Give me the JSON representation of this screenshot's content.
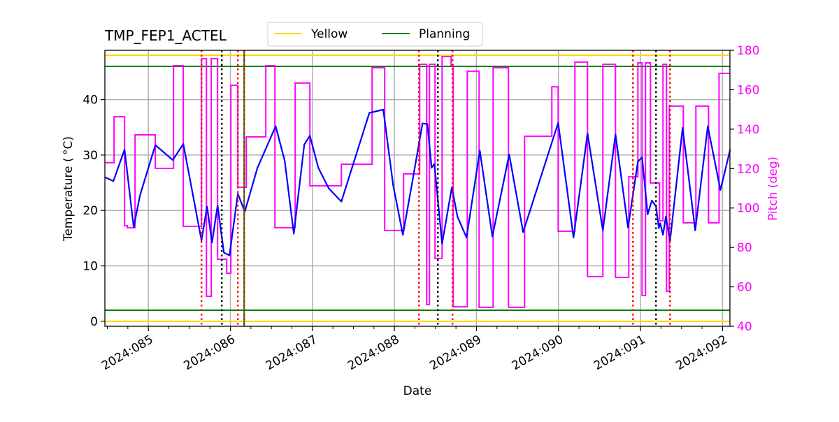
{
  "chart_data": {
    "type": "line",
    "title": "TMP_FEP1_ACTEL",
    "xlabel": "Date",
    "ylabel": "Temperature ($^\\circ$C)",
    "ylabel_display": "Temperature ( °C)",
    "y2label": "Pitch (deg)",
    "xlim": [
      84.47,
      92.09
    ],
    "ylim": [
      -0.9,
      48.9
    ],
    "y2lim": [
      40,
      180
    ],
    "grid": true,
    "legend_placement": "top-center",
    "x_ticks": [
      {
        "value": 85,
        "label": "2024:085"
      },
      {
        "value": 86,
        "label": "2024:086"
      },
      {
        "value": 87,
        "label": "2024:087"
      },
      {
        "value": 88,
        "label": "2024:088"
      },
      {
        "value": 89,
        "label": "2024:089"
      },
      {
        "value": 90,
        "label": "2024:090"
      },
      {
        "value": 91,
        "label": "2024:091"
      },
      {
        "value": 92,
        "label": "2024:092"
      }
    ],
    "y_ticks": [
      0,
      10,
      20,
      30,
      40
    ],
    "y2_ticks": [
      40,
      60,
      80,
      100,
      120,
      140,
      160,
      180
    ],
    "limit_lines": [
      {
        "name": "Yellow",
        "values": [
          48,
          0
        ],
        "color": "#ffd700"
      },
      {
        "name": "Planning",
        "values": [
          46,
          2
        ],
        "color": "#008000"
      }
    ],
    "vlines_red": [
      85.648,
      86.091,
      86.168,
      88.299,
      88.708,
      90.908,
      91.36
    ],
    "vlines_black": [
      85.895,
      88.529,
      91.189
    ],
    "vlines_green": [
      86.168
    ],
    "temperature": {
      "color": "#0000ff",
      "points": [
        [
          84.471,
          26.0
        ],
        [
          84.574,
          25.3
        ],
        [
          84.71,
          31.0
        ],
        [
          84.821,
          17.0
        ],
        [
          84.898,
          22.7
        ],
        [
          85.085,
          31.8
        ],
        [
          85.298,
          29.1
        ],
        [
          85.426,
          32.0
        ],
        [
          85.648,
          14.6
        ],
        [
          85.716,
          20.7
        ],
        [
          85.776,
          14.2
        ],
        [
          85.844,
          20.9
        ],
        [
          85.921,
          12.4
        ],
        [
          85.989,
          11.9
        ],
        [
          86.091,
          23.0
        ],
        [
          86.176,
          19.8
        ],
        [
          86.33,
          27.7
        ],
        [
          86.552,
          35.2
        ],
        [
          86.662,
          29.0
        ],
        [
          86.773,
          15.8
        ],
        [
          86.901,
          31.9
        ],
        [
          86.969,
          33.5
        ],
        [
          87.072,
          27.7
        ],
        [
          87.199,
          24.0
        ],
        [
          87.353,
          21.6
        ],
        [
          87.694,
          37.6
        ],
        [
          87.864,
          38.2
        ],
        [
          87.984,
          24.6
        ],
        [
          88.103,
          15.6
        ],
        [
          88.222,
          25.5
        ],
        [
          88.342,
          35.7
        ],
        [
          88.402,
          35.6
        ],
        [
          88.453,
          27.7
        ],
        [
          88.487,
          28.4
        ],
        [
          88.581,
          14.0
        ],
        [
          88.7,
          24.2
        ],
        [
          88.768,
          18.9
        ],
        [
          88.879,
          15.1
        ],
        [
          89.041,
          30.8
        ],
        [
          89.194,
          15.3
        ],
        [
          89.399,
          30.1
        ],
        [
          89.569,
          16.1
        ],
        [
          89.996,
          35.8
        ],
        [
          90.183,
          15.1
        ],
        [
          90.354,
          33.9
        ],
        [
          90.541,
          16.4
        ],
        [
          90.695,
          33.7
        ],
        [
          90.848,
          16.9
        ],
        [
          90.968,
          28.8
        ],
        [
          91.019,
          29.6
        ],
        [
          91.087,
          19.3
        ],
        [
          91.138,
          21.8
        ],
        [
          91.189,
          20.7
        ],
        [
          91.223,
          16.8
        ],
        [
          91.24,
          17.7
        ],
        [
          91.274,
          15.6
        ],
        [
          91.309,
          18.9
        ],
        [
          91.36,
          14.5
        ],
        [
          91.513,
          34.9
        ],
        [
          91.667,
          16.4
        ],
        [
          91.82,
          35.2
        ],
        [
          91.974,
          23.7
        ],
        [
          92.093,
          31.0
        ]
      ]
    },
    "pitch": {
      "color": "#ff00ff",
      "steps": [
        [
          84.471,
          123
        ],
        [
          84.582,
          146.3
        ],
        [
          84.71,
          91
        ],
        [
          84.744,
          90
        ],
        [
          84.838,
          137.1
        ],
        [
          85.085,
          120.1
        ],
        [
          85.307,
          172.2
        ],
        [
          85.426,
          90.7
        ],
        [
          85.648,
          175.8
        ],
        [
          85.708,
          55.2
        ],
        [
          85.767,
          175.8
        ],
        [
          85.844,
          74
        ],
        [
          85.955,
          66.9
        ],
        [
          86.006,
          162.3
        ],
        [
          86.091,
          110.5
        ],
        [
          86.194,
          136.1
        ],
        [
          86.432,
          172.2
        ],
        [
          86.543,
          90
        ],
        [
          86.79,
          163.4
        ],
        [
          86.969,
          111.3
        ],
        [
          87.353,
          122.2
        ],
        [
          87.728,
          171.2
        ],
        [
          87.881,
          88.6
        ],
        [
          88.112,
          117.3
        ],
        [
          88.308,
          172.9
        ],
        [
          88.393,
          51
        ],
        [
          88.427,
          172.9
        ],
        [
          88.495,
          74.4
        ],
        [
          88.581,
          176.8
        ],
        [
          88.691,
          172.5
        ],
        [
          88.717,
          49.9
        ],
        [
          88.888,
          169.4
        ],
        [
          89.032,
          49.6
        ],
        [
          89.203,
          171.2
        ],
        [
          89.39,
          49.6
        ],
        [
          89.587,
          136.4
        ],
        [
          89.919,
          161.5
        ],
        [
          89.996,
          88.2
        ],
        [
          90.2,
          174
        ],
        [
          90.354,
          65.2
        ],
        [
          90.541,
          172.9
        ],
        [
          90.695,
          64.8
        ],
        [
          90.857,
          115.9
        ],
        [
          90.968,
          173.6
        ],
        [
          91.019,
          55.6
        ],
        [
          91.061,
          173.6
        ],
        [
          91.121,
          112.7
        ],
        [
          91.232,
          93.5
        ],
        [
          91.274,
          172.9
        ],
        [
          91.317,
          57.7
        ],
        [
          91.351,
          151.7
        ],
        [
          91.522,
          92.5
        ],
        [
          91.675,
          151.7
        ],
        [
          91.829,
          92.5
        ],
        [
          91.957,
          168.3
        ],
        [
          92.093,
          168.3
        ]
      ]
    },
    "legend": [
      {
        "label": "Yellow",
        "color": "#ffd700"
      },
      {
        "label": "Planning",
        "color": "#008000"
      }
    ]
  }
}
